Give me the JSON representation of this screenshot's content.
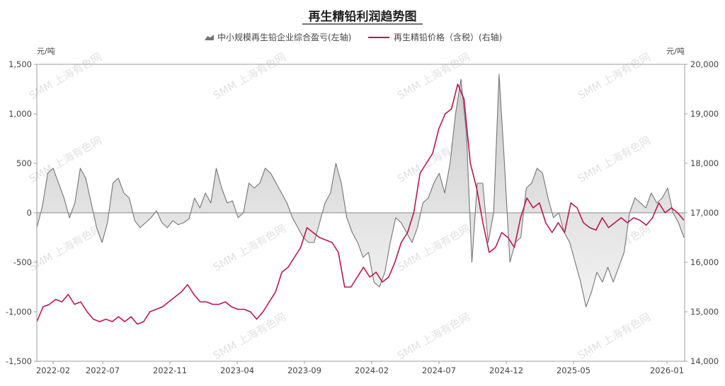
{
  "chart_data": {
    "type": "line",
    "title": "再生精铅利润趋势图",
    "watermark": "SMM 上海有色网",
    "left_unit": "元/吨",
    "right_unit": "元/吨",
    "x_ticks": [
      "2022-02",
      "2022-07",
      "2022-11",
      "2023-04",
      "2023-09",
      "2024-02",
      "2024-07",
      "2024-12",
      "2025-05",
      "2026-01"
    ],
    "left_ticks": [
      "1,500",
      "1,000",
      "500",
      "0",
      "-500",
      "-1,000",
      "-1,500"
    ],
    "right_ticks": [
      "20,000",
      "19,000",
      "18,000",
      "17,000",
      "16,000",
      "15,000",
      "14,000"
    ],
    "ylim_left": [
      -1500,
      1500
    ],
    "ylim_right": [
      14000,
      20000
    ],
    "legend_position": "top-center",
    "series": [
      {
        "name": "中小规模再生铅企业综合盈亏(左轴)",
        "axis": "left",
        "kind": "area",
        "color": "#757575",
        "fill": "#d9d9d9",
        "values": [
          -150,
          60,
          400,
          450,
          300,
          150,
          -50,
          100,
          450,
          350,
          100,
          -150,
          -300,
          -100,
          300,
          350,
          200,
          150,
          -80,
          -150,
          -100,
          -50,
          20,
          -100,
          -150,
          -80,
          -120,
          -100,
          -60,
          150,
          50,
          200,
          100,
          450,
          250,
          100,
          120,
          -50,
          0,
          300,
          250,
          300,
          450,
          400,
          300,
          200,
          100,
          -50,
          -150,
          -250,
          -300,
          -300,
          -100,
          100,
          200,
          500,
          300,
          -50,
          -200,
          -300,
          -450,
          -400,
          -700,
          -750,
          -600,
          -300,
          -50,
          -100,
          -200,
          -300,
          -150,
          100,
          150,
          300,
          400,
          200,
          500,
          1000,
          1350,
          800,
          -500,
          300,
          300,
          -300,
          0,
          1400,
          500,
          -500,
          -300,
          -250,
          250,
          300,
          450,
          400,
          150,
          -50,
          0,
          -200,
          -300,
          -500,
          -700,
          -950,
          -800,
          -600,
          -700,
          -550,
          -700,
          -550,
          -400,
          0,
          150,
          100,
          50,
          200,
          100,
          150,
          250,
          0,
          -100,
          -250
        ]
      },
      {
        "name": "再生精铅价格（含税）(右轴)",
        "axis": "right",
        "kind": "line",
        "color": "#b8174a",
        "values": [
          14800,
          15100,
          15150,
          15250,
          15200,
          15350,
          15150,
          15200,
          15000,
          14850,
          14800,
          14850,
          14800,
          14900,
          14800,
          14900,
          14750,
          14800,
          15000,
          15050,
          15100,
          15200,
          15300,
          15400,
          15550,
          15350,
          15200,
          15200,
          15150,
          15150,
          15200,
          15100,
          15050,
          15050,
          15000,
          14850,
          15000,
          15200,
          15400,
          15800,
          15900,
          16100,
          16300,
          16700,
          16600,
          16500,
          16450,
          16400,
          16200,
          15500,
          15500,
          15700,
          15900,
          15700,
          15800,
          15600,
          15700,
          16000,
          16400,
          16600,
          17000,
          17800,
          18000,
          18200,
          18700,
          19000,
          19100,
          19600,
          19300,
          18000,
          17500,
          16800,
          16200,
          16300,
          16600,
          16500,
          16300,
          16900,
          17300,
          17100,
          17200,
          16800,
          16600,
          16800,
          16600,
          17200,
          17100,
          16800,
          16700,
          16650,
          16900,
          16700,
          16800,
          16900,
          16800,
          16900,
          16850,
          16750,
          16900,
          17200,
          17000,
          17100,
          17000,
          16850
        ]
      }
    ]
  }
}
